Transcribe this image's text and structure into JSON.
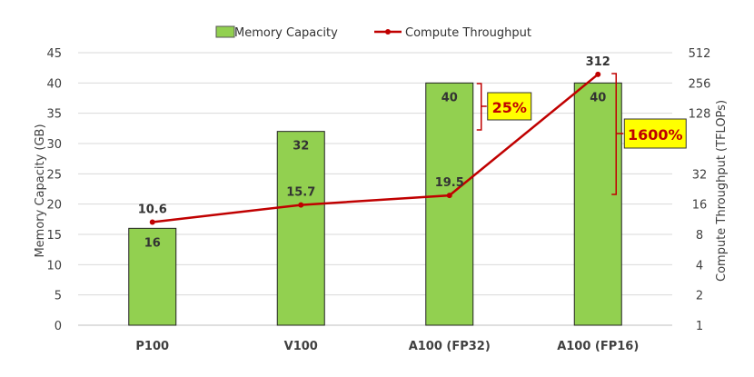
{
  "chart_data": {
    "type": "bar",
    "categories": [
      "P100",
      "V100",
      "A100 (FP32)",
      "A100 (FP16)"
    ],
    "series": [
      {
        "name": "Memory Capacity",
        "kind": "bar",
        "axis": "left",
        "color": "#92d050",
        "values": [
          16,
          32,
          40,
          40
        ],
        "labels": [
          "16",
          "32",
          "40",
          "40"
        ]
      },
      {
        "name": "Compute Throughput",
        "kind": "line",
        "axis": "right",
        "color": "#c00000",
        "values": [
          10.6,
          15.7,
          19.5,
          312
        ],
        "labels": [
          "10.6",
          "15.7",
          "19.5",
          "312"
        ]
      }
    ],
    "y_left": {
      "label": "Memory Capacity (GB)",
      "min": 0,
      "max": 45,
      "ticks": [
        "0",
        "5",
        "10",
        "15",
        "20",
        "25",
        "30",
        "35",
        "40",
        "45"
      ]
    },
    "y_right": {
      "label": "Compute Throughput (TFLOPs)",
      "scale": "log2",
      "min": 1,
      "max": 512,
      "ticks": [
        "1",
        "2",
        "4",
        "8",
        "16",
        "32",
        "128",
        "256",
        "512"
      ]
    },
    "gridlines": true,
    "legend": {
      "position": "top"
    },
    "annotations": [
      {
        "text": "25%",
        "highlight": "#ffff00",
        "text_color": "#c00000"
      },
      {
        "text": "1600%",
        "highlight": "#ffff00",
        "text_color": "#c00000"
      }
    ]
  }
}
